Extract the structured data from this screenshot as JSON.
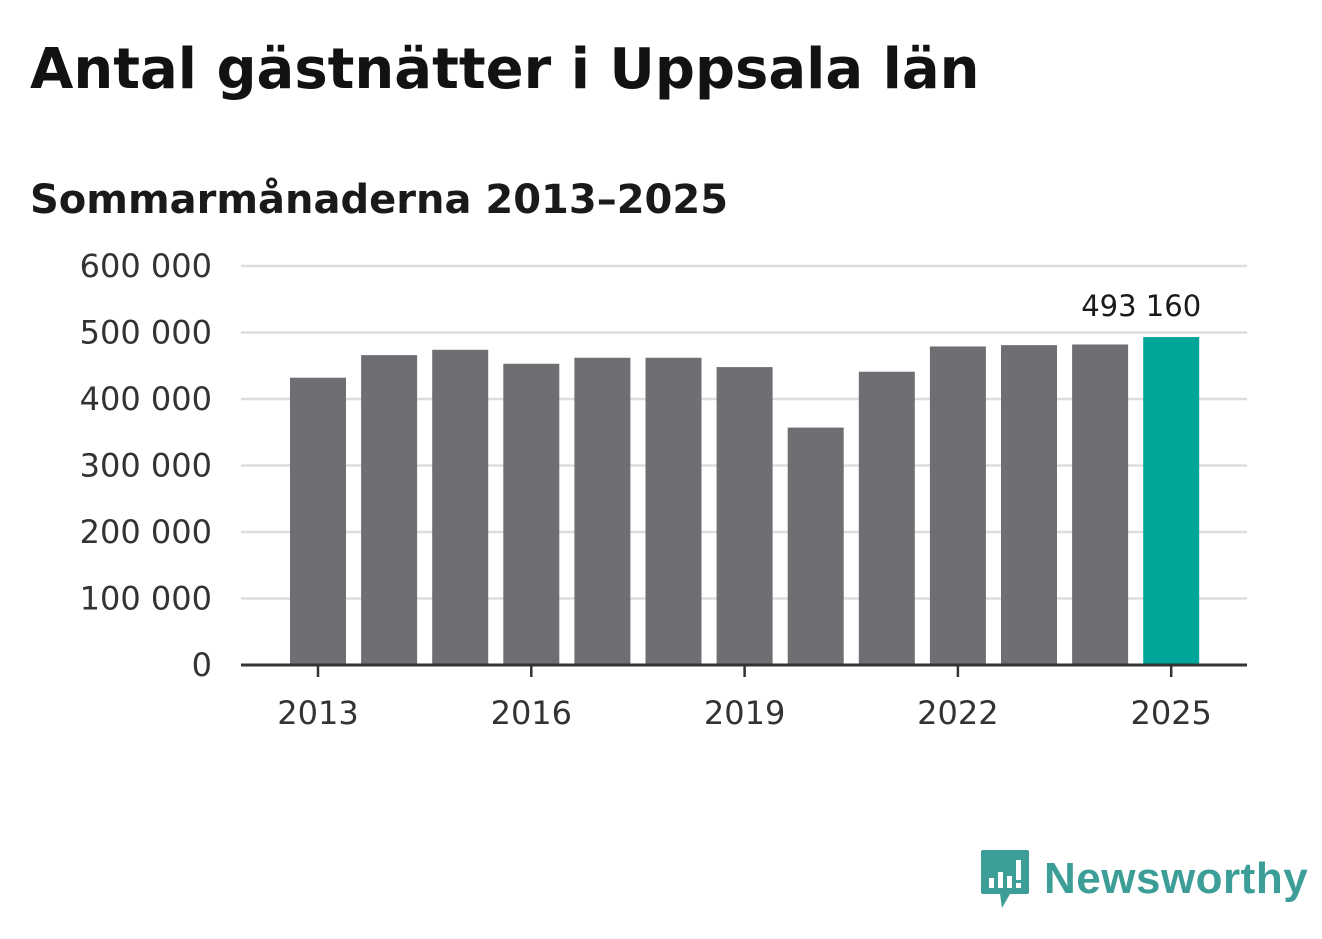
{
  "title": "Antal gästnätter i Uppsala län",
  "subtitle": "Sommarmånaderna 2013–2025",
  "brand": {
    "name": "Newsworthy",
    "icon": "newsworthy-logo-icon",
    "color": "#3d9e98"
  },
  "colors": {
    "bar": "#6f6e73",
    "highlight": "#00a59a",
    "grid": "#dddddd",
    "axis": "#333333"
  },
  "chart_data": {
    "type": "bar",
    "categories": [
      "2013",
      "2014",
      "2015",
      "2016",
      "2017",
      "2018",
      "2019",
      "2020",
      "2021",
      "2022",
      "2023",
      "2024",
      "2025"
    ],
    "values": [
      432000,
      466000,
      474000,
      453000,
      462000,
      462000,
      448000,
      357000,
      441000,
      479000,
      481000,
      482000,
      493160
    ],
    "x_tick_labels": [
      "2013",
      "2016",
      "2019",
      "2022",
      "2025"
    ],
    "y_ticks": [
      0,
      100000,
      200000,
      300000,
      400000,
      500000,
      600000
    ],
    "y_tick_labels": [
      "0",
      "100 000",
      "200 000",
      "300 000",
      "400 000",
      "500 000",
      "600 000"
    ],
    "ylim": [
      0,
      600000
    ],
    "highlight_index": 12,
    "annotation": {
      "index": 12,
      "text": "493 160"
    },
    "grid": true,
    "legend": false
  }
}
